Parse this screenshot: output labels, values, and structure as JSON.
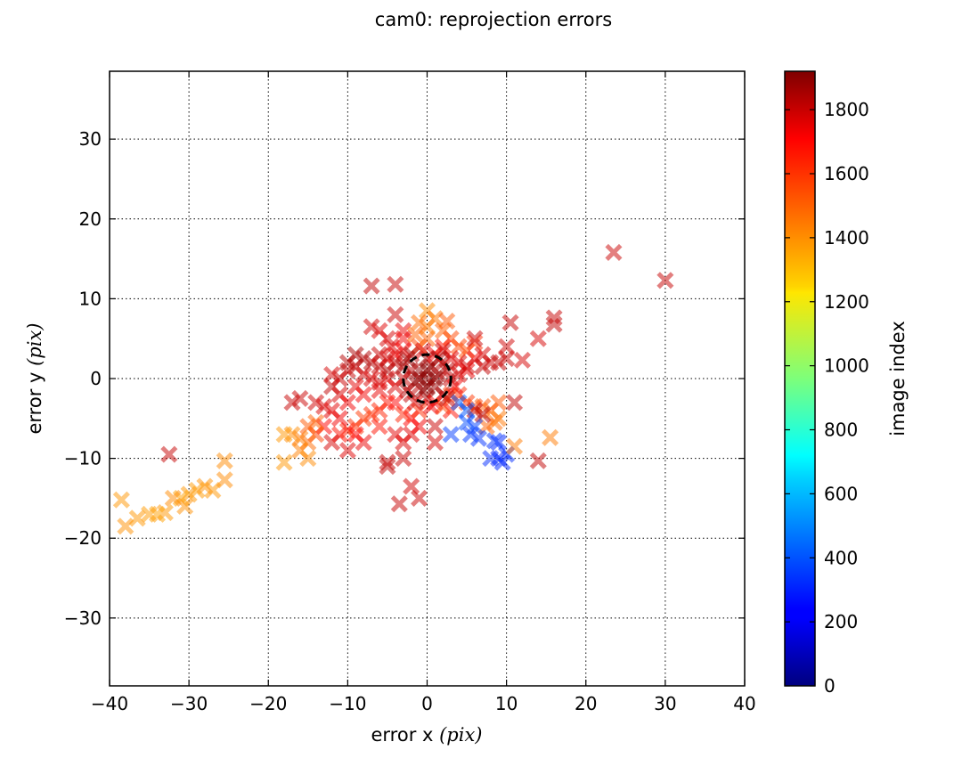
{
  "chart_data": {
    "type": "scatter",
    "title": "cam0: reprojection errors",
    "xlabel_prefix": "error x ",
    "xlabel_unit": "(pix)",
    "ylabel_prefix": "error y ",
    "ylabel_unit": "(pix)",
    "xlim": [
      -40,
      40
    ],
    "ylim": [
      -38.5,
      38.5
    ],
    "xticks": [
      -40,
      -30,
      -20,
      -10,
      0,
      10,
      20,
      30,
      40
    ],
    "yticks": [
      -30,
      -20,
      -10,
      0,
      10,
      20,
      30
    ],
    "grid": true,
    "marker": "x",
    "colormap": "jet",
    "colorbar": {
      "label": "image index",
      "range": [
        0,
        1920
      ],
      "ticks": [
        0,
        200,
        400,
        600,
        800,
        1000,
        1200,
        1400,
        1600,
        1800
      ]
    },
    "circle": {
      "center": [
        0,
        0
      ],
      "radius": 3,
      "style": "dashed",
      "color": "#000000"
    },
    "points": [
      {
        "x": 0,
        "y": 0,
        "c": 1880
      },
      {
        "x": 1,
        "y": -1,
        "c": 1870
      },
      {
        "x": -1,
        "y": 1,
        "c": 1890
      },
      {
        "x": 0.5,
        "y": 1.5,
        "c": 1860
      },
      {
        "x": -1.5,
        "y": -0.5,
        "c": 1850
      },
      {
        "x": 1.5,
        "y": 0.5,
        "c": 1840
      },
      {
        "x": -0.5,
        "y": -1.5,
        "c": 1880
      },
      {
        "x": 2,
        "y": 2,
        "c": 1820
      },
      {
        "x": -2,
        "y": 1,
        "c": 1810
      },
      {
        "x": 2,
        "y": -2,
        "c": 1830
      },
      {
        "x": -2,
        "y": -2,
        "c": 1800
      },
      {
        "x": 0,
        "y": 2.5,
        "c": 1850
      },
      {
        "x": 0,
        "y": -2.5,
        "c": 1860
      },
      {
        "x": 3,
        "y": 0,
        "c": 1790
      },
      {
        "x": -3,
        "y": 0,
        "c": 1780
      },
      {
        "x": -4,
        "y": -1,
        "c": 1760
      },
      {
        "x": -5,
        "y": 0,
        "c": 1740
      },
      {
        "x": -6,
        "y": -1.5,
        "c": 1720
      },
      {
        "x": -7,
        "y": 0,
        "c": 1750
      },
      {
        "x": -8,
        "y": -2,
        "c": 1700
      },
      {
        "x": -9,
        "y": -1,
        "c": 1730
      },
      {
        "x": -10,
        "y": 1,
        "c": 1790
      },
      {
        "x": -9,
        "y": 1.5,
        "c": 1800
      },
      {
        "x": -8,
        "y": 0.5,
        "c": 1770
      },
      {
        "x": -6,
        "y": 1.5,
        "c": 1780
      },
      {
        "x": -5,
        "y": 2.5,
        "c": 1760
      },
      {
        "x": -4,
        "y": 3,
        "c": 1720
      },
      {
        "x": -3,
        "y": 3.5,
        "c": 1700
      },
      {
        "x": -4,
        "y": -3,
        "c": 1680
      },
      {
        "x": -5,
        "y": -3,
        "c": 1650
      },
      {
        "x": -6,
        "y": -4,
        "c": 1620
      },
      {
        "x": -7,
        "y": -4.5,
        "c": 1600
      },
      {
        "x": -8,
        "y": -5,
        "c": 1580
      },
      {
        "x": -9,
        "y": -6,
        "c": 1600
      },
      {
        "x": -10,
        "y": -6.5,
        "c": 1620
      },
      {
        "x": -11,
        "y": -7,
        "c": 1650
      },
      {
        "x": -12,
        "y": -8,
        "c": 1760
      },
      {
        "x": -11,
        "y": -5,
        "c": 1700
      },
      {
        "x": -12,
        "y": -4,
        "c": 1730
      },
      {
        "x": -13,
        "y": -3.5,
        "c": 1750
      },
      {
        "x": -13,
        "y": -6,
        "c": 1680
      },
      {
        "x": -14,
        "y": -7,
        "c": 1560
      },
      {
        "x": -15,
        "y": -6,
        "c": 1520
      },
      {
        "x": -15,
        "y": -8,
        "c": 1480
      },
      {
        "x": -16,
        "y": -7.5,
        "c": 1450
      },
      {
        "x": -17,
        "y": -7,
        "c": 1420
      },
      {
        "x": -18,
        "y": -7,
        "c": 1400
      },
      {
        "x": -16,
        "y": -9,
        "c": 1440
      },
      {
        "x": -15,
        "y": -10,
        "c": 1420
      },
      {
        "x": -18,
        "y": -10.5,
        "c": 1400
      },
      {
        "x": -14,
        "y": -5.5,
        "c": 1500
      },
      {
        "x": -12,
        "y": -1,
        "c": 1800
      },
      {
        "x": -11,
        "y": -2,
        "c": 1760
      },
      {
        "x": -10,
        "y": -3,
        "c": 1700
      },
      {
        "x": -16,
        "y": -2.5,
        "c": 1780
      },
      {
        "x": -17,
        "y": -3,
        "c": 1790
      },
      {
        "x": -14,
        "y": -3,
        "c": 1770
      },
      {
        "x": -7,
        "y": 2,
        "c": 1820
      },
      {
        "x": -6,
        "y": 3,
        "c": 1780
      },
      {
        "x": -8,
        "y": 2.5,
        "c": 1830
      },
      {
        "x": -4.5,
        "y": 4,
        "c": 1740
      },
      {
        "x": -3,
        "y": 5,
        "c": 1700
      },
      {
        "x": -5,
        "y": 5,
        "c": 1760
      },
      {
        "x": -3,
        "y": 6,
        "c": 1720
      },
      {
        "x": -4,
        "y": 8,
        "c": 1780
      },
      {
        "x": -6,
        "y": 6,
        "c": 1740
      },
      {
        "x": -7,
        "y": 6.5,
        "c": 1770
      },
      {
        "x": -4,
        "y": 11.8,
        "c": 1790
      },
      {
        "x": -7,
        "y": 11.6,
        "c": 1800
      },
      {
        "x": -1,
        "y": 4,
        "c": 1550
      },
      {
        "x": 0,
        "y": 5,
        "c": 1500
      },
      {
        "x": 0,
        "y": 6.5,
        "c": 1450
      },
      {
        "x": 0,
        "y": 8.5,
        "c": 1420
      },
      {
        "x": -1,
        "y": 7,
        "c": 1480
      },
      {
        "x": 1,
        "y": 7.5,
        "c": 1460
      },
      {
        "x": 2,
        "y": 6,
        "c": 1500
      },
      {
        "x": 2.5,
        "y": 7.2,
        "c": 1520
      },
      {
        "x": 3,
        "y": 5,
        "c": 1550
      },
      {
        "x": 4,
        "y": 4,
        "c": 1560
      },
      {
        "x": 5,
        "y": 3.5,
        "c": 1540
      },
      {
        "x": 6,
        "y": 4.5,
        "c": 1600
      },
      {
        "x": 1,
        "y": 3,
        "c": 1700
      },
      {
        "x": 2,
        "y": 4,
        "c": 1650
      },
      {
        "x": -1.5,
        "y": 5.5,
        "c": 1500
      },
      {
        "x": 4,
        "y": 2,
        "c": 1750
      },
      {
        "x": 5,
        "y": 1,
        "c": 1720
      },
      {
        "x": 6,
        "y": 2.5,
        "c": 1700
      },
      {
        "x": 7,
        "y": 3,
        "c": 1760
      },
      {
        "x": 6,
        "y": 5,
        "c": 1780
      },
      {
        "x": 7,
        "y": 1.5,
        "c": 1800
      },
      {
        "x": 8,
        "y": 2,
        "c": 1780
      },
      {
        "x": 9,
        "y": 2,
        "c": 1800
      },
      {
        "x": 10,
        "y": 2.5,
        "c": 1780
      },
      {
        "x": 10,
        "y": 4,
        "c": 1770
      },
      {
        "x": 10.5,
        "y": 7,
        "c": 1790
      },
      {
        "x": 12,
        "y": 2.3,
        "c": 1760
      },
      {
        "x": 14,
        "y": 5,
        "c": 1760
      },
      {
        "x": 16,
        "y": 6.8,
        "c": 1800
      },
      {
        "x": 16,
        "y": 7.6,
        "c": 1790
      },
      {
        "x": 4,
        "y": -2,
        "c": 1600
      },
      {
        "x": 5,
        "y": -3,
        "c": 1580
      },
      {
        "x": 6,
        "y": -3.5,
        "c": 1560
      },
      {
        "x": 7,
        "y": -3.5,
        "c": 1520
      },
      {
        "x": 8,
        "y": -4,
        "c": 1500
      },
      {
        "x": 9,
        "y": -3,
        "c": 1520
      },
      {
        "x": 8.5,
        "y": -5.5,
        "c": 1480
      },
      {
        "x": 7.5,
        "y": -6,
        "c": 1500
      },
      {
        "x": 9,
        "y": -5,
        "c": 1460
      },
      {
        "x": 6,
        "y": -4,
        "c": 1800
      },
      {
        "x": 7,
        "y": -4.5,
        "c": 1820
      },
      {
        "x": 3,
        "y": -2,
        "c": 1580
      },
      {
        "x": 1,
        "y": -3,
        "c": 1700
      },
      {
        "x": 2,
        "y": -3.5,
        "c": 1550
      },
      {
        "x": 3,
        "y": -4,
        "c": 1650
      },
      {
        "x": 4,
        "y": -3,
        "c": 420
      },
      {
        "x": 5,
        "y": -4,
        "c": 400
      },
      {
        "x": 5,
        "y": -5.5,
        "c": 380
      },
      {
        "x": 6,
        "y": -6,
        "c": 360
      },
      {
        "x": 5.5,
        "y": -7,
        "c": 340
      },
      {
        "x": 3,
        "y": -7,
        "c": 350
      },
      {
        "x": 6.5,
        "y": -7.5,
        "c": 330
      },
      {
        "x": 8,
        "y": -10,
        "c": 320
      },
      {
        "x": 9,
        "y": -10,
        "c": 300
      },
      {
        "x": 10,
        "y": -9.5,
        "c": 320
      },
      {
        "x": 9,
        "y": -8,
        "c": 310
      },
      {
        "x": 8.5,
        "y": -7.8,
        "c": 330
      },
      {
        "x": 9.5,
        "y": -10.5,
        "c": 310
      },
      {
        "x": 11,
        "y": -3,
        "c": 1800
      },
      {
        "x": 11,
        "y": -8.5,
        "c": 1450
      },
      {
        "x": 14,
        "y": -10.3,
        "c": 1800
      },
      {
        "x": 15.5,
        "y": -7.4,
        "c": 1450
      },
      {
        "x": 23.5,
        "y": 15.8,
        "c": 1780
      },
      {
        "x": 30,
        "y": 12.3,
        "c": 1790
      },
      {
        "x": -32.5,
        "y": -9.5,
        "c": 1790
      },
      {
        "x": -25.5,
        "y": -10.3,
        "c": 1420
      },
      {
        "x": -25.5,
        "y": -12.7,
        "c": 1420
      },
      {
        "x": -27,
        "y": -14,
        "c": 1400
      },
      {
        "x": -28,
        "y": -13.5,
        "c": 1410
      },
      {
        "x": -29,
        "y": -14,
        "c": 1390
      },
      {
        "x": -30,
        "y": -14.5,
        "c": 1400
      },
      {
        "x": -31,
        "y": -15,
        "c": 1380
      },
      {
        "x": -30.5,
        "y": -16,
        "c": 1410
      },
      {
        "x": -32,
        "y": -15,
        "c": 1420
      },
      {
        "x": -33,
        "y": -16.8,
        "c": 1400
      },
      {
        "x": -34,
        "y": -17,
        "c": 1380
      },
      {
        "x": -35,
        "y": -17,
        "c": 1390
      },
      {
        "x": -36.5,
        "y": -17.5,
        "c": 1400
      },
      {
        "x": -38,
        "y": -18.5,
        "c": 1410
      },
      {
        "x": -38.5,
        "y": -15.2,
        "c": 1400
      },
      {
        "x": -5,
        "y": -10.5,
        "c": 1790
      },
      {
        "x": -5,
        "y": -11,
        "c": 1800
      },
      {
        "x": -3,
        "y": -10,
        "c": 1780
      },
      {
        "x": -2,
        "y": -13.5,
        "c": 1770
      },
      {
        "x": -1,
        "y": -15,
        "c": 1780
      },
      {
        "x": -3.5,
        "y": -15.7,
        "c": 1790
      },
      {
        "x": -3,
        "y": -8,
        "c": 1750
      },
      {
        "x": -2,
        "y": -7,
        "c": 1740
      },
      {
        "x": -4,
        "y": -7,
        "c": 1730
      },
      {
        "x": -1,
        "y": -6,
        "c": 1700
      },
      {
        "x": 1,
        "y": -6,
        "c": 1780
      },
      {
        "x": 1,
        "y": -8,
        "c": 1760
      },
      {
        "x": -2,
        "y": -5,
        "c": 1680
      },
      {
        "x": -1,
        "y": -4,
        "c": 1600
      },
      {
        "x": -3,
        "y": -4.5,
        "c": 1620
      },
      {
        "x": -8,
        "y": -8,
        "c": 1720
      },
      {
        "x": -9,
        "y": -7,
        "c": 1680
      },
      {
        "x": -10,
        "y": -9,
        "c": 1740
      },
      {
        "x": -6,
        "y": -6,
        "c": 1650
      },
      {
        "x": -12,
        "y": 0.5,
        "c": 1760
      },
      {
        "x": -10,
        "y": 2,
        "c": 1820
      },
      {
        "x": -9,
        "y": 3,
        "c": 1840
      },
      {
        "x": -11,
        "y": 0,
        "c": 1780
      },
      {
        "x": -5,
        "y": 1,
        "c": 1830
      },
      {
        "x": -6,
        "y": -0.5,
        "c": 1760
      },
      {
        "x": -3,
        "y": 1.5,
        "c": 1850
      },
      {
        "x": -4,
        "y": 2,
        "c": 1800
      },
      {
        "x": -2,
        "y": 3,
        "c": 1830
      },
      {
        "x": 3,
        "y": 2.5,
        "c": 1740
      },
      {
        "x": 4,
        "y": 0.5,
        "c": 1760
      },
      {
        "x": 3.5,
        "y": -1,
        "c": 1700
      },
      {
        "x": 2,
        "y": 3.5,
        "c": 1780
      },
      {
        "x": 5,
        "y": 1.5,
        "c": 1770
      },
      {
        "x": -0.5,
        "y": 3.5,
        "c": 1750
      },
      {
        "x": 0.5,
        "y": -3.5,
        "c": 1700
      },
      {
        "x": -1.5,
        "y": -3,
        "c": 1760
      },
      {
        "x": -2.5,
        "y": -1.5,
        "c": 1820
      },
      {
        "x": 2.5,
        "y": 1,
        "c": 1810
      },
      {
        "x": 1.5,
        "y": 2.5,
        "c": 1840
      },
      {
        "x": -2.5,
        "y": 2.5,
        "c": 1860
      },
      {
        "x": 2.5,
        "y": -2.5,
        "c": 1800
      },
      {
        "x": 0,
        "y": 1,
        "c": 1900
      },
      {
        "x": 0,
        "y": -1,
        "c": 1900
      },
      {
        "x": 1,
        "y": 0,
        "c": 1900
      },
      {
        "x": -1,
        "y": 0,
        "c": 1900
      }
    ]
  }
}
